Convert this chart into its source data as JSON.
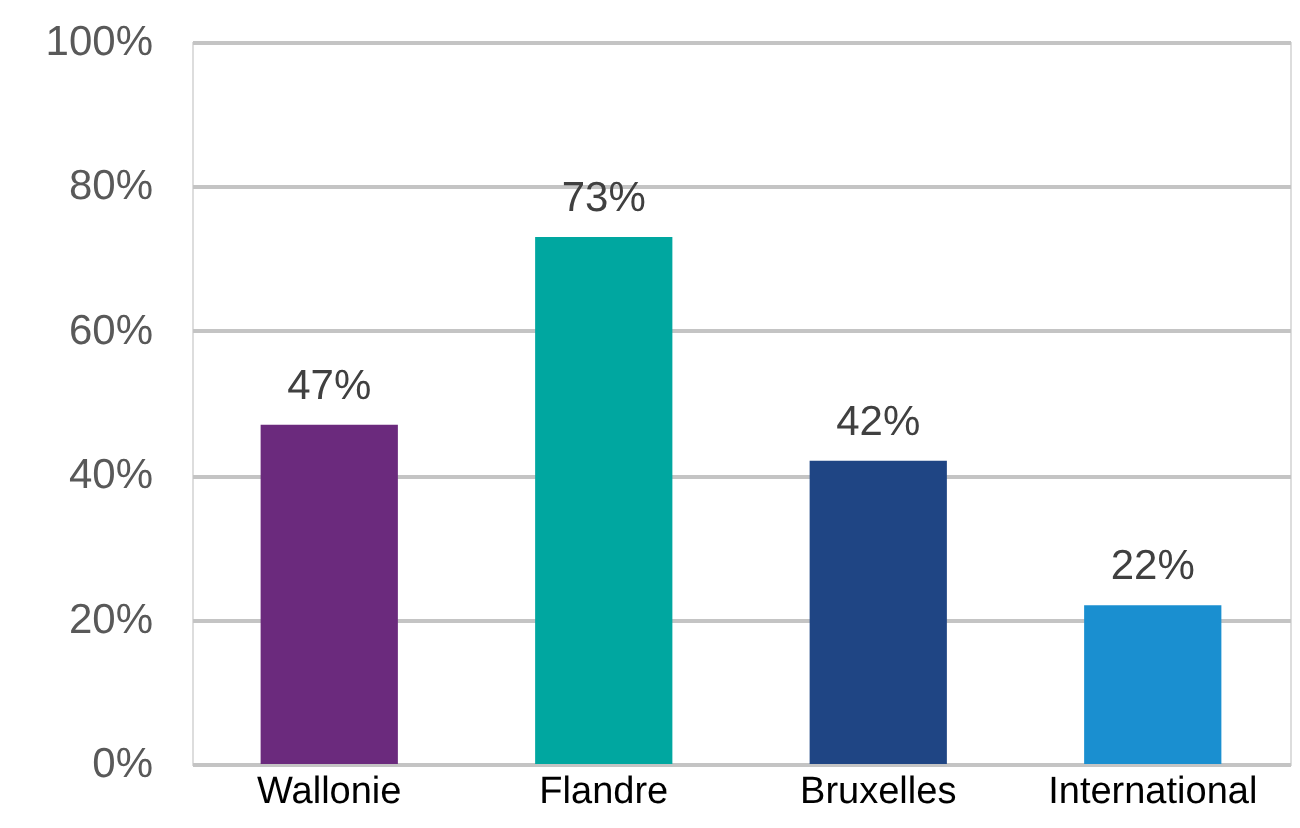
{
  "chart_data": {
    "type": "bar",
    "categories": [
      "Wallonie",
      "Flandre",
      "Bruxelles",
      "International"
    ],
    "values": [
      47,
      73,
      42,
      22
    ],
    "colors": [
      "#6b2a7d",
      "#00a7a0",
      "#1f4584",
      "#1a8fd0"
    ],
    "value_labels": [
      "47%",
      "73%",
      "42%",
      "22%"
    ],
    "ylim": [
      0,
      100
    ],
    "yticks": [
      {
        "value": 0,
        "label": "0%"
      },
      {
        "value": 20,
        "label": "20%"
      },
      {
        "value": 40,
        "label": "40%"
      },
      {
        "value": 60,
        "label": "60%"
      },
      {
        "value": 80,
        "label": "80%"
      },
      {
        "value": 100,
        "label": "100%"
      }
    ],
    "grid": "y"
  }
}
